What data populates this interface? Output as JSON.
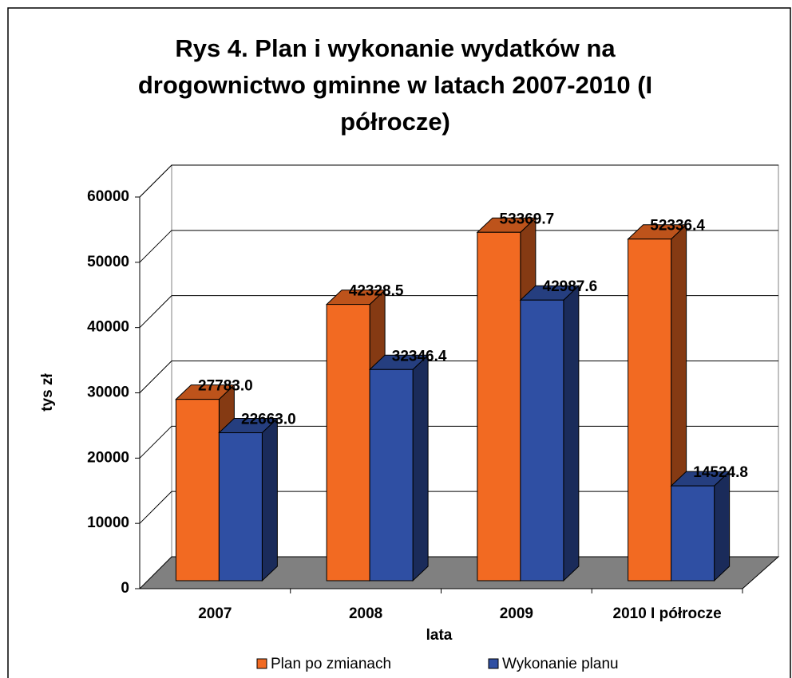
{
  "chart_data": {
    "type": "bar3d",
    "title": "Rys 4. Plan i wykonanie wydatków na drogownictwo gminne w latach 2007-2010 (I półrocze)",
    "categories": [
      "2007",
      "2008",
      "2009",
      "2010 I półrocze"
    ],
    "series": [
      {
        "name": "Plan po zmianach",
        "color": "#f26a22",
        "values": [
          27783.0,
          42328.5,
          53369.7,
          52336.4
        ],
        "value_labels": [
          "27783.0",
          "42328.5",
          "53369.7",
          "52336.4"
        ]
      },
      {
        "name": "Wykonanie planu",
        "color": "#2f4fa3",
        "values": [
          22663.0,
          32346.4,
          42987.6,
          14524.8
        ],
        "value_labels": [
          "22663.0",
          "32346.4",
          "42987.6",
          "14524.8"
        ]
      }
    ],
    "ylabel": "tys zł",
    "xlabel": "lata",
    "ylim": [
      0,
      60000
    ],
    "yticks": [
      0,
      10000,
      20000,
      30000,
      40000,
      50000,
      60000
    ],
    "grid": true,
    "legend": "bottom"
  }
}
